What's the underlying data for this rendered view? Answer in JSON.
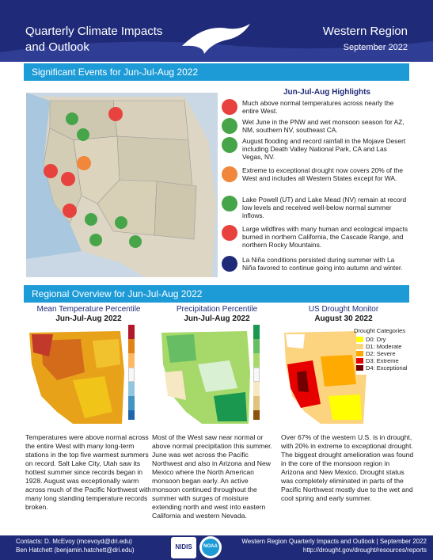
{
  "header": {
    "title": "Quarterly Climate Impacts and Outlook",
    "region": "Western Region",
    "date": "September 2022"
  },
  "significant_events": {
    "band_title": "Significant Events for Jun-Jul-Aug 2022",
    "highlights_title": "Jun-Jul-Aug Highlights",
    "items": [
      {
        "icon": "thermometer-icon",
        "color": "#e8423f",
        "text": "Much above normal temperatures across nearly the entire West."
      },
      {
        "icon": "water-drop-icon",
        "color": "#46a548",
        "text": "Wet June in the PNW and wet monsoon season for AZ, NM, southern NV, southeast CA."
      },
      {
        "icon": "flood-icon",
        "color": "#46a548",
        "text": "August flooding and record rainfall in the Mojave Desert including Death Valley National Park, CA and Las Vegas, NV."
      },
      {
        "icon": "drought-icon",
        "color": "#f0873a",
        "text": "Extreme to exceptional drought now covers 20% of the West and includes all Western States except for WA."
      },
      {
        "icon": "reservoir-icon",
        "color": "#46a548",
        "text": "Lake Powell (UT) and Lake Mead (NV) remain at record low levels and received well-below normal summer inflows."
      },
      {
        "icon": "wildfire-icon",
        "color": "#e8423f",
        "text": "Large wildfires with many human and ecological impacts burned in northern California, the Cascade Range, and northern Rocky Mountains."
      },
      {
        "icon": "la-nina-icon",
        "color": "#1f2b79",
        "text": "La Niña conditions persisted during summer with La Niña favored to continue going into autumn and winter."
      }
    ]
  },
  "regional_overview": {
    "band_title": "Regional Overview for Jun-Jul-Aug 2022",
    "temperature": {
      "title": "Mean Temperature Percentile",
      "period": "Jun-Jul-Aug 2022",
      "text": "Temperatures were above normal across the entire West with many long-term stations in the top five warmest summers on record. Salt Lake City, Utah saw its hottest summer since records began in 1928. August was exceptionally warm across much of the Pacific Northwest with many long standing temperature records broken."
    },
    "precipitation": {
      "title": "Precipitation Percentile",
      "period": "Jun-Jul-Aug 2022",
      "text": "Most of the West saw near normal or above normal precipitation this summer. June was wet across the Pacific Northwest and also in Arizona and New Mexico where the North American monsoon began early. An active monsoon continued throughout the summer with surges of moisture extending north and west into eastern California and western Nevada."
    },
    "drought": {
      "title": "US Drought Monitor",
      "period": "August 30 2022",
      "legend_title": "Drought Categories",
      "categories": [
        {
          "label": "D0: Dry",
          "color": "#ffff00"
        },
        {
          "label": "D1: Moderate",
          "color": "#fcd37f"
        },
        {
          "label": "D2: Severe",
          "color": "#ffaa00"
        },
        {
          "label": "D3: Extreme",
          "color": "#e60000"
        },
        {
          "label": "D4: Exceptional",
          "color": "#730000"
        }
      ],
      "text": "Over 67% of the western U.S. is in drought, with 20% in extreme to exceptional drought. The biggest drought amelioration was found in the core of the monsoon region in Arizona and New Mexico. Drought status was completely eliminated in parts of the Pacific Northwest mostly due to the wet and cool spring and early summer."
    }
  },
  "footer": {
    "contact1": "Contacts: D. McEvoy (mcevoyd@dri.edu)",
    "contact2": "Ben Hatchett (benjamin.hatchett@dri.edu)",
    "logo1": "NIDIS",
    "logo2": "NOAA",
    "right1": "Western Region Quarterly Impacts and Outlook | September 2022",
    "right2": "http://drought.gov/drought/resources/reports"
  },
  "colors": {
    "navy": "#1f2b79",
    "band": "#1d9bd7"
  }
}
